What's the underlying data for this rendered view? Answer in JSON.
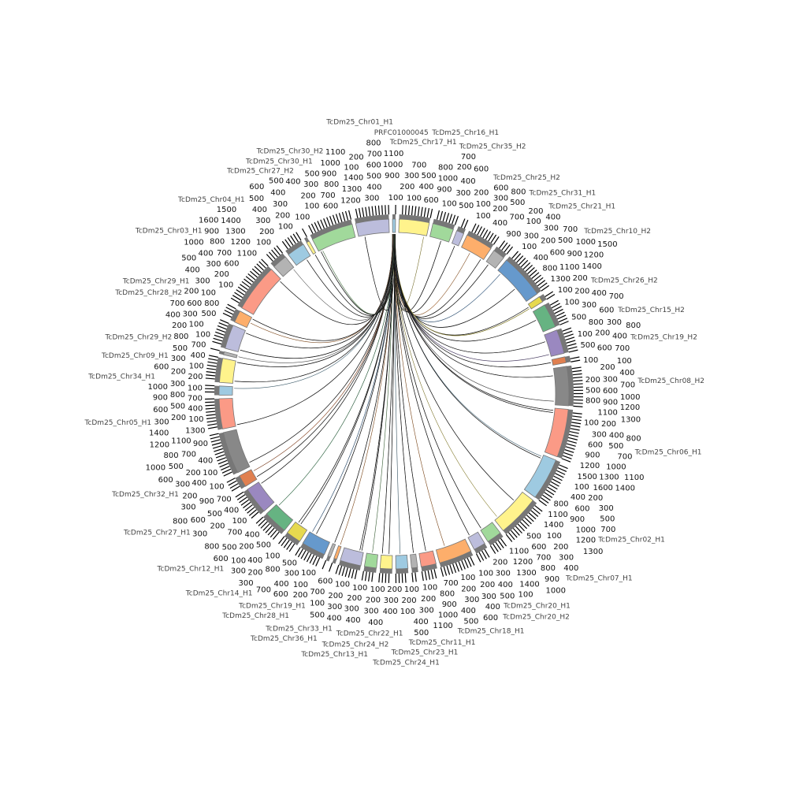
{
  "chart_data": {
    "type": "circos",
    "tick_interval": 100,
    "link_color": "#111111",
    "band_color": "#777777",
    "segments": [
      {
        "name": "PRFC01000045",
        "length": 100,
        "color": "#9ecae1"
      },
      {
        "name": "TcDm25_Chr17_H1",
        "length": 1000,
        "color": "#fff38c"
      },
      {
        "name": "TcDm25_Chr16_H1",
        "length": 700,
        "color": "#a1d99b"
      },
      {
        "name": "TcDm25_Chr35_H2",
        "length": 250,
        "color": "#bcbddc"
      },
      {
        "name": "TcDm25_Chr25_H2",
        "length": 900,
        "color": "#fdae6b"
      },
      {
        "name": "TcDm25_Chr31_H1",
        "length": 400,
        "color": "#b3b3b3"
      },
      {
        "name": "TcDm25_Chr21_H1",
        "length": 1500,
        "color": "#6699cc"
      },
      {
        "name": "TcDm25_Chr10_H2",
        "length": 200,
        "color": "#e6d94f"
      },
      {
        "name": "TcDm25_Chr26_H2",
        "length": 800,
        "color": "#66b382"
      },
      {
        "name": "TcDm25_Chr15_H2",
        "length": 800,
        "color": "#9a88c0"
      },
      {
        "name": "TcDm25_Chr19_H2",
        "length": 200,
        "color": "#e08050"
      },
      {
        "name": "TcDm25_Chr08_H2",
        "length": 1300,
        "color": "#888888"
      },
      {
        "name": "TcDm25_Chr06_H1",
        "length": 1600,
        "color": "#fb9a86"
      },
      {
        "name": "TcDm25_Chr02_H1",
        "length": 1400,
        "color": "#9ecae1"
      },
      {
        "name": "TcDm25_Chr07_H1",
        "length": 1400,
        "color": "#fff38c"
      },
      {
        "name": "TcDm25_Chr20_H1",
        "length": 500,
        "color": "#a1d99b"
      },
      {
        "name": "TcDm25_Chr20_H2",
        "length": 400,
        "color": "#bcbddc"
      },
      {
        "name": "TcDm25_Chr18_H1",
        "length": 1100,
        "color": "#fdae6b"
      },
      {
        "name": "TcDm25_Chr11_H1",
        "length": 500,
        "color": "#fb9a86"
      },
      {
        "name": "TcDm25_Chr23_H1",
        "length": 200,
        "color": "#b3b3b3"
      },
      {
        "name": "TcDm25_Chr24_H1",
        "length": 400,
        "color": "#9ecae1"
      },
      {
        "name": "TcDm25_Chr22_H1",
        "length": 400,
        "color": "#fff38c"
      },
      {
        "name": "TcDm25_Chr24_H2",
        "length": 400,
        "color": "#a1d99b"
      },
      {
        "name": "TcDm25_Chr13_H1",
        "length": 700,
        "color": "#bcbddc"
      },
      {
        "name": "TcDm25_Chr33_H1",
        "length": 100,
        "color": "#fdae6b"
      },
      {
        "name": "TcDm25_Chr36_H1",
        "length": 100,
        "color": "#b3b3b3"
      },
      {
        "name": "TcDm25_Chr19_H1",
        "length": 800,
        "color": "#6699cc"
      },
      {
        "name": "TcDm25_Chr28_H1",
        "length": 500,
        "color": "#e6d94f"
      },
      {
        "name": "TcDm25_Chr14_H1",
        "length": 800,
        "color": "#66b382"
      },
      {
        "name": "TcDm25_Chr12_H1",
        "length": 900,
        "color": "#9a88c0"
      },
      {
        "name": "TcDm25_Chr27_H1",
        "length": 400,
        "color": "#e08050"
      },
      {
        "name": "TcDm25_Chr32_H1",
        "length": 1400,
        "color": "#888888"
      },
      {
        "name": "TcDm25_Chr05_H1",
        "length": 1000,
        "color": "#fb9a86"
      },
      {
        "name": "TcDm25_Chr34_H1",
        "length": 300,
        "color": "#9ecae1"
      },
      {
        "name": "TcDm25_Chr09_H1",
        "length": 800,
        "color": "#fff38c"
      },
      {
        "name": "TcDm25_Chr29_H2",
        "length": 100,
        "color": "#b3b3b3"
      },
      {
        "name": "TcDm25_Chr28_H2",
        "length": 800,
        "color": "#bcbddc"
      },
      {
        "name": "TcDm25_Chr29_H1",
        "length": 400,
        "color": "#fdae6b"
      },
      {
        "name": "TcDm25_Chr03_H1",
        "length": 1600,
        "color": "#fb9a86"
      },
      {
        "name": "TcDm25_Chr04_H1",
        "length": 500,
        "color": "#b3b3b3"
      },
      {
        "name": "TcDm25_Chr27_H2",
        "length": 600,
        "color": "#9ecae1"
      },
      {
        "name": "TcDm25_Chr30_H1",
        "length": 100,
        "color": "#fff38c"
      },
      {
        "name": "TcDm25_Chr30_H2",
        "length": 1400,
        "color": "#a1d99b"
      },
      {
        "name": "TcDm25_Chr01_H1",
        "length": 1100,
        "color": "#bcbddc"
      }
    ],
    "links": [
      [
        1,
        0.9
      ],
      [
        2,
        0.6
      ],
      [
        3,
        0.5
      ],
      [
        4,
        0.4
      ],
      [
        4,
        0.9
      ],
      [
        5,
        0.3
      ],
      [
        6,
        0.1
      ],
      [
        6,
        0.6
      ],
      [
        7,
        0.5
      ],
      [
        7,
        0.8
      ],
      [
        8,
        0.4
      ],
      [
        9,
        0.3
      ],
      [
        9,
        0.9
      ],
      [
        10,
        0.5
      ],
      [
        11,
        0.2
      ],
      [
        11,
        0.9
      ],
      [
        12,
        0.05
      ],
      [
        12,
        0.1
      ],
      [
        13,
        0.05
      ],
      [
        13,
        0.1
      ],
      [
        14,
        0.3
      ],
      [
        14,
        0.9
      ],
      [
        15,
        0.9
      ],
      [
        16,
        0.8
      ],
      [
        17,
        0.7
      ],
      [
        18,
        0.5
      ],
      [
        19,
        0.4
      ],
      [
        20,
        0.6
      ],
      [
        21,
        0.3
      ],
      [
        21,
        0.9
      ],
      [
        22,
        0.5
      ],
      [
        23,
        0.1
      ],
      [
        23,
        0.2
      ],
      [
        24,
        0.5
      ],
      [
        25,
        0.5
      ],
      [
        26,
        0.7
      ],
      [
        26,
        0.9
      ],
      [
        27,
        0.6
      ],
      [
        27,
        0.8
      ],
      [
        28,
        0.9
      ],
      [
        29,
        0.9
      ],
      [
        30,
        0.2
      ],
      [
        30,
        0.8
      ],
      [
        31,
        0.1
      ],
      [
        32,
        0.05
      ],
      [
        33,
        0.8
      ],
      [
        34,
        0.1
      ],
      [
        34,
        0.95
      ],
      [
        35,
        0.5
      ],
      [
        36,
        0.1
      ],
      [
        36,
        0.9
      ],
      [
        37,
        0.5
      ],
      [
        37,
        0.9
      ],
      [
        38,
        0.95
      ],
      [
        39,
        0.9
      ],
      [
        40,
        0.7
      ],
      [
        41,
        0.5
      ],
      [
        42,
        0.1
      ],
      [
        42,
        0.05
      ],
      [
        43,
        0.2
      ]
    ]
  }
}
